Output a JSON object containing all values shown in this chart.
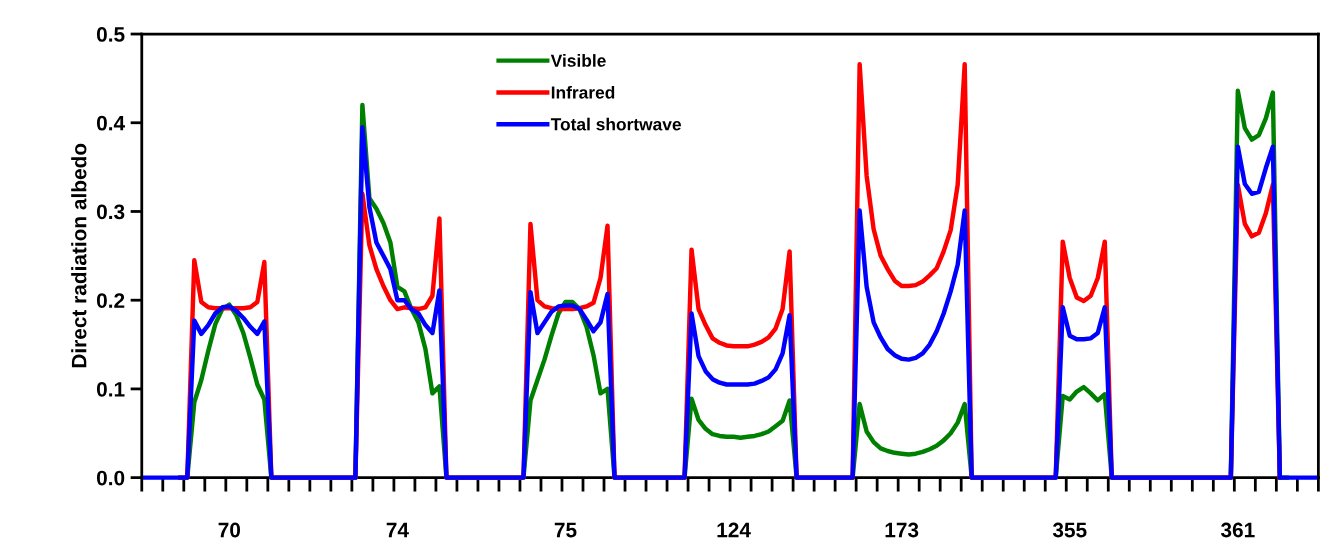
{
  "chart_data": {
    "type": "line",
    "ylabel": "Direct radiation albedo",
    "categories": [
      null,
      null,
      null,
      null,
      null,
      null,
      null,
      null,
      null,
      null,
      null,
      null,
      "70",
      null,
      null,
      null,
      null,
      null,
      null,
      null,
      null,
      null,
      null,
      null,
      null,
      null,
      null,
      null,
      null,
      null,
      null,
      null,
      null,
      null,
      null,
      null,
      "74",
      null,
      null,
      null,
      null,
      null,
      null,
      null,
      null,
      null,
      null,
      null,
      null,
      null,
      null,
      null,
      null,
      null,
      null,
      null,
      null,
      null,
      null,
      null,
      "75",
      null,
      null,
      null,
      null,
      null,
      null,
      null,
      null,
      null,
      null,
      null,
      null,
      null,
      null,
      null,
      null,
      null,
      null,
      null,
      null,
      null,
      null,
      null,
      "124",
      null,
      null,
      null,
      null,
      null,
      null,
      null,
      null,
      null,
      null,
      null,
      null,
      null,
      null,
      null,
      null,
      null,
      null,
      null,
      null,
      null,
      null,
      null,
      "173",
      null,
      null,
      null,
      null,
      null,
      null,
      null,
      null,
      null,
      null,
      null,
      null,
      null,
      null,
      null,
      null,
      null,
      null,
      null,
      null,
      null,
      null,
      null,
      "355",
      null,
      null,
      null,
      null,
      null,
      null,
      null,
      null,
      null,
      null,
      null,
      null,
      null,
      null,
      null,
      null,
      null,
      null,
      null,
      null,
      null,
      null,
      null,
      "361",
      null,
      null,
      null,
      null,
      null,
      null,
      null,
      null,
      null,
      null,
      null
    ],
    "ylim": [
      0,
      0.5
    ],
    "yticks": [
      {
        "value": 0,
        "label": "0.0"
      },
      0.1,
      0.2,
      0.3,
      0.4,
      0.5
    ],
    "legend": "top",
    "grid": false,
    "marker": "none",
    "line_style": "solid",
    "series": [
      {
        "name": "Visible",
        "color": "#008000",
        "values": [
          null,
          null,
          null,
          null,
          null,
          0,
          0,
          0.085,
          0.11,
          0.143,
          0.173,
          0.19,
          0.195,
          0.183,
          0.163,
          0.135,
          0.105,
          0.088,
          0,
          0,
          0,
          0,
          0,
          0,
          0,
          0,
          0,
          0,
          0,
          0,
          0,
          0.42,
          0.315,
          0.303,
          0.287,
          0.265,
          0.215,
          0.21,
          0.19,
          0.175,
          0.145,
          0.095,
          0.103,
          0,
          0,
          0,
          0,
          0,
          0,
          0,
          0,
          0,
          0,
          0,
          0,
          0.087,
          0.11,
          0.133,
          0.16,
          0.185,
          0.198,
          0.198,
          0.19,
          0.17,
          0.138,
          0.095,
          0.1,
          0,
          0,
          0,
          0,
          0,
          0,
          0,
          0,
          0,
          0,
          0,
          0.089,
          0.065,
          0.055,
          0.049,
          0.047,
          0.046,
          0.046,
          0.045,
          0.046,
          0.047,
          0.049,
          0.052,
          0.058,
          0.064,
          0.087,
          0,
          0,
          0,
          0,
          0,
          0,
          0,
          0,
          0,
          0.083,
          0.052,
          0.04,
          0.033,
          0.03,
          0.028,
          0.027,
          0.026,
          0.027,
          0.029,
          0.032,
          0.036,
          0.042,
          0.05,
          0.062,
          0.083,
          0,
          0,
          0,
          0,
          0,
          0,
          0,
          0,
          0,
          0,
          0,
          0,
          0,
          0.092,
          0.088,
          0.097,
          0.102,
          0.095,
          0.087,
          0.094,
          0,
          0,
          0,
          0,
          0,
          0,
          0,
          0,
          0,
          0,
          0,
          0,
          0,
          0,
          0,
          0,
          0,
          0,
          0.436,
          0.394,
          0.381,
          0.386,
          0.405,
          0.434,
          0,
          0,
          null,
          null,
          null,
          null
        ]
      },
      {
        "name": "Infrared",
        "color": "#ff0000",
        "values": [
          null,
          null,
          null,
          null,
          null,
          0,
          0,
          0.245,
          0.198,
          0.192,
          0.191,
          0.191,
          0.191,
          0.191,
          0.191,
          0.192,
          0.198,
          0.243,
          0,
          0,
          0,
          0,
          0,
          0,
          0,
          0,
          0,
          0,
          0,
          0,
          0,
          0.32,
          0.262,
          0.235,
          0.216,
          0.2,
          0.19,
          0.192,
          0.191,
          0.19,
          0.192,
          0.205,
          0.292,
          0,
          0,
          0,
          0,
          0,
          0,
          0,
          0,
          0,
          0,
          0,
          0,
          0.286,
          0.2,
          0.193,
          0.191,
          0.19,
          0.19,
          0.19,
          0.191,
          0.193,
          0.197,
          0.225,
          0.284,
          0,
          0,
          0,
          0,
          0,
          0,
          0,
          0,
          0,
          0,
          0,
          0.257,
          0.19,
          0.172,
          0.157,
          0.152,
          0.149,
          0.148,
          0.148,
          0.148,
          0.15,
          0.153,
          0.158,
          0.168,
          0.19,
          0.255,
          0,
          0,
          0,
          0,
          0,
          0,
          0,
          0,
          0,
          0.466,
          0.34,
          0.28,
          0.25,
          0.235,
          0.222,
          0.216,
          0.216,
          0.217,
          0.221,
          0.228,
          0.236,
          0.255,
          0.279,
          0.33,
          0.466,
          0,
          0,
          0,
          0,
          0,
          0,
          0,
          0,
          0,
          0,
          0,
          0,
          0,
          0.266,
          0.225,
          0.203,
          0.199,
          0.205,
          0.225,
          0.266,
          0,
          0,
          0,
          0,
          0,
          0,
          0,
          0,
          0,
          0,
          0,
          0,
          0,
          0,
          0,
          0,
          0,
          0,
          0.33,
          0.286,
          0.272,
          0.276,
          0.298,
          0.33,
          0,
          null,
          null,
          null,
          null,
          null
        ]
      },
      {
        "name": "Total shortwave",
        "color": "#0000ff",
        "values": [
          0,
          0,
          0,
          0,
          0,
          0,
          0,
          0.177,
          0.162,
          0.172,
          0.185,
          0.192,
          0.193,
          0.188,
          0.18,
          0.17,
          0.162,
          0.176,
          0,
          0,
          0,
          0,
          0,
          0,
          0,
          0,
          0,
          0,
          0,
          0,
          0,
          0.395,
          0.305,
          0.265,
          0.25,
          0.235,
          0.2,
          0.2,
          0.19,
          0.185,
          0.172,
          0.163,
          0.211,
          0,
          0,
          0,
          0,
          0,
          0,
          0,
          0,
          0,
          0,
          0,
          0,
          0.209,
          0.163,
          0.175,
          0.187,
          0.193,
          0.194,
          0.194,
          0.19,
          0.178,
          0.165,
          0.175,
          0.207,
          0,
          0,
          0,
          0,
          0,
          0,
          0,
          0,
          0,
          0,
          0,
          0.185,
          0.137,
          0.12,
          0.111,
          0.107,
          0.105,
          0.105,
          0.105,
          0.105,
          0.106,
          0.109,
          0.113,
          0.122,
          0.14,
          0.183,
          0,
          0,
          0,
          0,
          0,
          0,
          0,
          0,
          0,
          0.301,
          0.215,
          0.175,
          0.158,
          0.145,
          0.138,
          0.134,
          0.133,
          0.135,
          0.14,
          0.15,
          0.165,
          0.185,
          0.21,
          0.24,
          0.301,
          0,
          0,
          0,
          0,
          0,
          0,
          0,
          0,
          0,
          0,
          0,
          0,
          0,
          0.192,
          0.16,
          0.156,
          0.156,
          0.157,
          0.163,
          0.192,
          0,
          0,
          0,
          0,
          0,
          0,
          0,
          0,
          0,
          0,
          0,
          0,
          0,
          0,
          0,
          0,
          0,
          0,
          0.373,
          0.331,
          0.32,
          0.322,
          0.349,
          0.373,
          0,
          0,
          0,
          0,
          0,
          0
        ]
      }
    ]
  }
}
